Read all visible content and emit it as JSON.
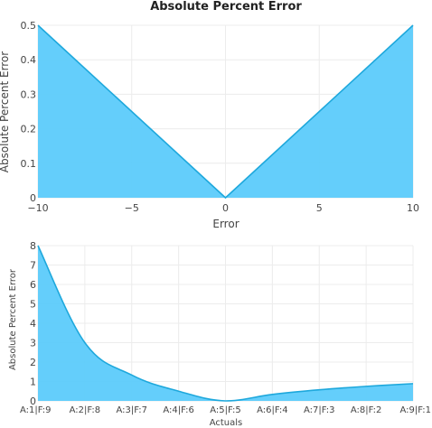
{
  "title": "Absolute Percent Error",
  "colors": {
    "fill": "#5ccbfb",
    "line": "#1ea8dc",
    "grid": "#ececec",
    "text": "#444444"
  },
  "chart_data": [
    {
      "type": "area",
      "xlabel": "Error",
      "ylabel": "Absolute Percent Error",
      "x": [
        -10,
        0,
        10
      ],
      "y": [
        0.5,
        0,
        0.5
      ],
      "xlim": [
        -10,
        10
      ],
      "ylim": [
        0,
        0.5
      ],
      "xticks": [
        -10,
        -5,
        0,
        5,
        10
      ],
      "xtick_labels": [
        "−10",
        "−5",
        "0",
        "5",
        "10"
      ],
      "yticks": [
        0,
        0.1,
        0.2,
        0.3,
        0.4,
        0.5
      ],
      "ytick_labels": [
        "0",
        "0.1",
        "0.2",
        "0.3",
        "0.4",
        "0.5"
      ],
      "grid": true
    },
    {
      "type": "area",
      "xlabel": "Actuals",
      "ylabel": "Absolute Percent Error",
      "categories": [
        "A:1|F:9",
        "A:2|F:8",
        "A:3|F:7",
        "A:4|F:6",
        "A:5|F:5",
        "A:6|F:4",
        "A:7|F:3",
        "A:8|F:2",
        "A:9|F:1"
      ],
      "y": [
        8,
        3,
        1.333,
        0.5,
        0,
        0.333,
        0.571,
        0.75,
        0.889
      ],
      "ylim": [
        0,
        8
      ],
      "yticks": [
        0,
        1,
        2,
        3,
        4,
        5,
        6,
        7,
        8
      ],
      "ytick_labels": [
        "0",
        "1",
        "2",
        "3",
        "4",
        "5",
        "6",
        "7",
        "8"
      ],
      "grid": true
    }
  ]
}
